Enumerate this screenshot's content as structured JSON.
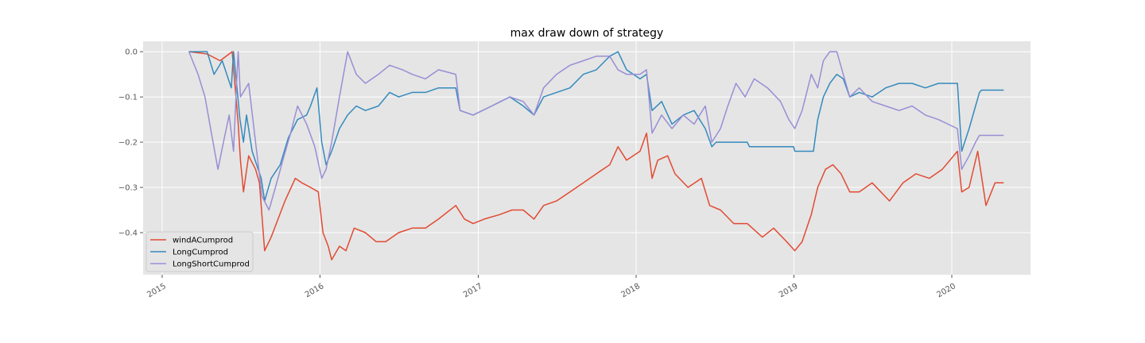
{
  "chart_data": {
    "type": "line",
    "title": "max draw down of strategy",
    "xlabel": "",
    "ylabel": "",
    "x_axis": {
      "type": "date",
      "range": [
        "2014-11-18",
        "2020-07-01"
      ],
      "ticks": [
        {
          "date": "2015-01-01",
          "label": "2015"
        },
        {
          "date": "2016-01-01",
          "label": "2016"
        },
        {
          "date": "2017-01-01",
          "label": "2017"
        },
        {
          "date": "2018-01-01",
          "label": "2018"
        },
        {
          "date": "2019-01-01",
          "label": "2019"
        },
        {
          "date": "2020-01-01",
          "label": "2020"
        }
      ]
    },
    "y_axis": {
      "range": [
        -0.493,
        0.023
      ],
      "ticks": [
        {
          "value": 0.0,
          "label": "0.0"
        },
        {
          "value": -0.1,
          "label": "−0.1"
        },
        {
          "value": -0.2,
          "label": "−0.2"
        },
        {
          "value": -0.3,
          "label": "−0.3"
        },
        {
          "value": -0.4,
          "label": "−0.4"
        }
      ]
    },
    "grid": true,
    "legend_position": "lower-left",
    "series": [
      {
        "name": "windACumprod",
        "color": "#E24A33",
        "points": [
          [
            "2015-03-04",
            0.0
          ],
          [
            "2015-04-15",
            -0.005
          ],
          [
            "2015-05-15",
            -0.02
          ],
          [
            "2015-06-12",
            0.0
          ],
          [
            "2015-06-26",
            -0.16
          ],
          [
            "2015-07-01",
            -0.24
          ],
          [
            "2015-07-08",
            -0.31
          ],
          [
            "2015-07-20",
            -0.23
          ],
          [
            "2015-08-05",
            -0.26
          ],
          [
            "2015-08-14",
            -0.29
          ],
          [
            "2015-08-26",
            -0.44
          ],
          [
            "2015-09-10",
            -0.41
          ],
          [
            "2015-09-22",
            -0.38
          ],
          [
            "2015-10-12",
            -0.33
          ],
          [
            "2015-11-05",
            -0.28
          ],
          [
            "2015-11-20",
            -0.29
          ],
          [
            "2015-12-10",
            -0.3
          ],
          [
            "2015-12-28",
            -0.31
          ],
          [
            "2016-01-08",
            -0.4
          ],
          [
            "2016-01-20",
            -0.43
          ],
          [
            "2016-01-28",
            -0.46
          ],
          [
            "2016-02-15",
            -0.43
          ],
          [
            "2016-03-01",
            -0.44
          ],
          [
            "2016-03-20",
            -0.39
          ],
          [
            "2016-04-15",
            -0.4
          ],
          [
            "2016-05-10",
            -0.42
          ],
          [
            "2016-06-01",
            -0.42
          ],
          [
            "2016-07-01",
            -0.4
          ],
          [
            "2016-08-01",
            -0.39
          ],
          [
            "2016-09-01",
            -0.39
          ],
          [
            "2016-10-01",
            -0.37
          ],
          [
            "2016-11-10",
            -0.34
          ],
          [
            "2016-11-30",
            -0.37
          ],
          [
            "2016-12-20",
            -0.38
          ],
          [
            "2017-01-15",
            -0.37
          ],
          [
            "2017-02-20",
            -0.36
          ],
          [
            "2017-03-20",
            -0.35
          ],
          [
            "2017-04-15",
            -0.35
          ],
          [
            "2017-05-10",
            -0.37
          ],
          [
            "2017-06-01",
            -0.34
          ],
          [
            "2017-07-01",
            -0.33
          ],
          [
            "2017-08-01",
            -0.31
          ],
          [
            "2017-09-01",
            -0.29
          ],
          [
            "2017-10-01",
            -0.27
          ],
          [
            "2017-11-01",
            -0.25
          ],
          [
            "2017-11-20",
            -0.21
          ],
          [
            "2017-12-10",
            -0.24
          ],
          [
            "2018-01-10",
            -0.22
          ],
          [
            "2018-01-25",
            -0.18
          ],
          [
            "2018-02-07",
            -0.28
          ],
          [
            "2018-02-20",
            -0.24
          ],
          [
            "2018-03-15",
            -0.23
          ],
          [
            "2018-04-01",
            -0.27
          ],
          [
            "2018-05-01",
            -0.3
          ],
          [
            "2018-06-01",
            -0.28
          ],
          [
            "2018-06-20",
            -0.34
          ],
          [
            "2018-07-15",
            -0.35
          ],
          [
            "2018-08-15",
            -0.38
          ],
          [
            "2018-09-15",
            -0.38
          ],
          [
            "2018-10-20",
            -0.41
          ],
          [
            "2018-11-15",
            -0.39
          ],
          [
            "2018-12-15",
            -0.42
          ],
          [
            "2019-01-03",
            -0.44
          ],
          [
            "2019-01-20",
            -0.42
          ],
          [
            "2019-02-10",
            -0.36
          ],
          [
            "2019-02-25",
            -0.3
          ],
          [
            "2019-03-15",
            -0.26
          ],
          [
            "2019-04-01",
            -0.25
          ],
          [
            "2019-04-20",
            -0.27
          ],
          [
            "2019-05-10",
            -0.31
          ],
          [
            "2019-06-01",
            -0.31
          ],
          [
            "2019-07-01",
            -0.29
          ],
          [
            "2019-08-10",
            -0.33
          ],
          [
            "2019-09-10",
            -0.29
          ],
          [
            "2019-10-10",
            -0.27
          ],
          [
            "2019-11-10",
            -0.28
          ],
          [
            "2019-12-10",
            -0.26
          ],
          [
            "2020-01-14",
            -0.22
          ],
          [
            "2020-01-24",
            -0.31
          ],
          [
            "2020-02-10",
            -0.3
          ],
          [
            "2020-03-01",
            -0.22
          ],
          [
            "2020-03-20",
            -0.34
          ],
          [
            "2020-04-10",
            -0.29
          ],
          [
            "2020-04-30",
            -0.29
          ]
        ]
      },
      {
        "name": "LongCumprod",
        "color": "#348ABD",
        "points": [
          [
            "2015-03-04",
            0.0
          ],
          [
            "2015-04-15",
            0.0
          ],
          [
            "2015-05-01",
            -0.05
          ],
          [
            "2015-05-20",
            -0.02
          ],
          [
            "2015-06-10",
            -0.08
          ],
          [
            "2015-06-15",
            0.0
          ],
          [
            "2015-06-20",
            -0.05
          ],
          [
            "2015-06-30",
            -0.15
          ],
          [
            "2015-07-08",
            -0.2
          ],
          [
            "2015-07-15",
            -0.14
          ],
          [
            "2015-07-28",
            -0.22
          ],
          [
            "2015-08-18",
            -0.28
          ],
          [
            "2015-08-26",
            -0.33
          ],
          [
            "2015-09-10",
            -0.28
          ],
          [
            "2015-10-01",
            -0.25
          ],
          [
            "2015-10-20",
            -0.19
          ],
          [
            "2015-11-10",
            -0.15
          ],
          [
            "2015-12-01",
            -0.14
          ],
          [
            "2015-12-10",
            -0.12
          ],
          [
            "2015-12-25",
            -0.08
          ],
          [
            "2016-01-05",
            -0.2
          ],
          [
            "2016-01-15",
            -0.25
          ],
          [
            "2016-01-28",
            -0.22
          ],
          [
            "2016-02-15",
            -0.17
          ],
          [
            "2016-03-05",
            -0.14
          ],
          [
            "2016-03-25",
            -0.12
          ],
          [
            "2016-04-15",
            -0.13
          ],
          [
            "2016-05-15",
            -0.12
          ],
          [
            "2016-06-10",
            -0.09
          ],
          [
            "2016-07-01",
            -0.1
          ],
          [
            "2016-08-01",
            -0.09
          ],
          [
            "2016-09-01",
            -0.09
          ],
          [
            "2016-10-01",
            -0.08
          ],
          [
            "2016-11-10",
            -0.08
          ],
          [
            "2016-11-20",
            -0.13
          ],
          [
            "2016-12-20",
            -0.14
          ],
          [
            "2017-02-01",
            -0.12
          ],
          [
            "2017-03-15",
            -0.1
          ],
          [
            "2017-04-15",
            -0.12
          ],
          [
            "2017-05-10",
            -0.14
          ],
          [
            "2017-06-01",
            -0.1
          ],
          [
            "2017-07-01",
            -0.09
          ],
          [
            "2017-08-01",
            -0.08
          ],
          [
            "2017-09-01",
            -0.05
          ],
          [
            "2017-10-01",
            -0.04
          ],
          [
            "2017-11-01",
            -0.01
          ],
          [
            "2017-11-20",
            0.0
          ],
          [
            "2017-12-10",
            -0.04
          ],
          [
            "2018-01-10",
            -0.06
          ],
          [
            "2018-01-25",
            -0.05
          ],
          [
            "2018-02-07",
            -0.13
          ],
          [
            "2018-03-01",
            -0.11
          ],
          [
            "2018-03-25",
            -0.16
          ],
          [
            "2018-04-20",
            -0.14
          ],
          [
            "2018-05-15",
            -0.13
          ],
          [
            "2018-06-10",
            -0.17
          ],
          [
            "2018-06-25",
            -0.21
          ],
          [
            "2018-07-05",
            -0.2
          ],
          [
            "2018-09-15",
            -0.2
          ],
          [
            "2018-09-20",
            -0.21
          ],
          [
            "2018-12-31",
            -0.21
          ],
          [
            "2019-01-03",
            -0.22
          ],
          [
            "2019-02-15",
            -0.22
          ],
          [
            "2019-02-25",
            -0.15
          ],
          [
            "2019-03-10",
            -0.1
          ],
          [
            "2019-03-25",
            -0.07
          ],
          [
            "2019-04-10",
            -0.05
          ],
          [
            "2019-04-25",
            -0.06
          ],
          [
            "2019-05-10",
            -0.1
          ],
          [
            "2019-06-01",
            -0.09
          ],
          [
            "2019-07-01",
            -0.1
          ],
          [
            "2019-08-01",
            -0.08
          ],
          [
            "2019-09-01",
            -0.07
          ],
          [
            "2019-10-01",
            -0.07
          ],
          [
            "2019-11-01",
            -0.08
          ],
          [
            "2019-12-01",
            -0.07
          ],
          [
            "2020-01-14",
            -0.07
          ],
          [
            "2020-01-24",
            -0.22
          ],
          [
            "2020-02-10",
            -0.17
          ],
          [
            "2020-02-25",
            -0.12
          ],
          [
            "2020-03-05",
            -0.09
          ],
          [
            "2020-03-10",
            -0.085
          ],
          [
            "2020-04-30",
            -0.085
          ]
        ]
      },
      {
        "name": "LongShortCumprod",
        "color": "#988ED5",
        "points": [
          [
            "2015-03-04",
            0.0
          ],
          [
            "2015-03-25",
            -0.05
          ],
          [
            "2015-04-10",
            -0.1
          ],
          [
            "2015-04-25",
            -0.18
          ],
          [
            "2015-05-10",
            -0.26
          ],
          [
            "2015-05-25",
            -0.19
          ],
          [
            "2015-06-05",
            -0.14
          ],
          [
            "2015-06-15",
            -0.22
          ],
          [
            "2015-06-22",
            -0.07
          ],
          [
            "2015-06-26",
            0.0
          ],
          [
            "2015-07-01",
            -0.1
          ],
          [
            "2015-07-20",
            -0.07
          ],
          [
            "2015-08-05",
            -0.2
          ],
          [
            "2015-08-20",
            -0.32
          ],
          [
            "2015-09-05",
            -0.35
          ],
          [
            "2015-09-20",
            -0.3
          ],
          [
            "2015-10-10",
            -0.23
          ],
          [
            "2015-10-25",
            -0.18
          ],
          [
            "2015-11-10",
            -0.12
          ],
          [
            "2015-12-01",
            -0.16
          ],
          [
            "2015-12-20",
            -0.21
          ],
          [
            "2016-01-05",
            -0.28
          ],
          [
            "2016-01-15",
            -0.26
          ],
          [
            "2016-01-28",
            -0.2
          ],
          [
            "2016-02-15",
            -0.1
          ],
          [
            "2016-03-05",
            0.0
          ],
          [
            "2016-03-25",
            -0.05
          ],
          [
            "2016-04-15",
            -0.07
          ],
          [
            "2016-05-15",
            -0.05
          ],
          [
            "2016-06-10",
            -0.03
          ],
          [
            "2016-07-10",
            -0.04
          ],
          [
            "2016-08-01",
            -0.05
          ],
          [
            "2016-09-01",
            -0.06
          ],
          [
            "2016-10-01",
            -0.04
          ],
          [
            "2016-11-10",
            -0.05
          ],
          [
            "2016-11-20",
            -0.13
          ],
          [
            "2016-12-20",
            -0.14
          ],
          [
            "2017-02-01",
            -0.12
          ],
          [
            "2017-03-15",
            -0.1
          ],
          [
            "2017-04-15",
            -0.11
          ],
          [
            "2017-05-10",
            -0.14
          ],
          [
            "2017-06-01",
            -0.08
          ],
          [
            "2017-07-01",
            -0.05
          ],
          [
            "2017-08-01",
            -0.03
          ],
          [
            "2017-09-01",
            -0.02
          ],
          [
            "2017-10-01",
            -0.01
          ],
          [
            "2017-11-01",
            -0.01
          ],
          [
            "2017-11-20",
            -0.04
          ],
          [
            "2017-12-10",
            -0.05
          ],
          [
            "2018-01-10",
            -0.05
          ],
          [
            "2018-01-25",
            -0.04
          ],
          [
            "2018-02-07",
            -0.18
          ],
          [
            "2018-03-01",
            -0.14
          ],
          [
            "2018-03-25",
            -0.17
          ],
          [
            "2018-04-20",
            -0.14
          ],
          [
            "2018-05-15",
            -0.16
          ],
          [
            "2018-06-10",
            -0.12
          ],
          [
            "2018-06-25",
            -0.2
          ],
          [
            "2018-07-15",
            -0.17
          ],
          [
            "2018-08-01",
            -0.12
          ],
          [
            "2018-08-20",
            -0.07
          ],
          [
            "2018-09-10",
            -0.1
          ],
          [
            "2018-10-01",
            -0.06
          ],
          [
            "2018-11-01",
            -0.08
          ],
          [
            "2018-12-01",
            -0.11
          ],
          [
            "2018-12-20",
            -0.15
          ],
          [
            "2019-01-03",
            -0.17
          ],
          [
            "2019-01-20",
            -0.13
          ],
          [
            "2019-02-10",
            -0.05
          ],
          [
            "2019-02-25",
            -0.08
          ],
          [
            "2019-03-10",
            -0.02
          ],
          [
            "2019-03-25",
            0.0
          ],
          [
            "2019-04-10",
            0.0
          ],
          [
            "2019-04-25",
            -0.05
          ],
          [
            "2019-05-10",
            -0.1
          ],
          [
            "2019-06-01",
            -0.08
          ],
          [
            "2019-07-01",
            -0.11
          ],
          [
            "2019-08-01",
            -0.12
          ],
          [
            "2019-09-01",
            -0.13
          ],
          [
            "2019-10-01",
            -0.12
          ],
          [
            "2019-11-01",
            -0.14
          ],
          [
            "2019-12-01",
            -0.15
          ],
          [
            "2020-01-14",
            -0.17
          ],
          [
            "2020-01-24",
            -0.26
          ],
          [
            "2020-02-10",
            -0.23
          ],
          [
            "2020-02-25",
            -0.2
          ],
          [
            "2020-03-05",
            -0.185
          ],
          [
            "2020-03-10",
            -0.185
          ],
          [
            "2020-04-30",
            -0.185
          ]
        ]
      }
    ]
  }
}
